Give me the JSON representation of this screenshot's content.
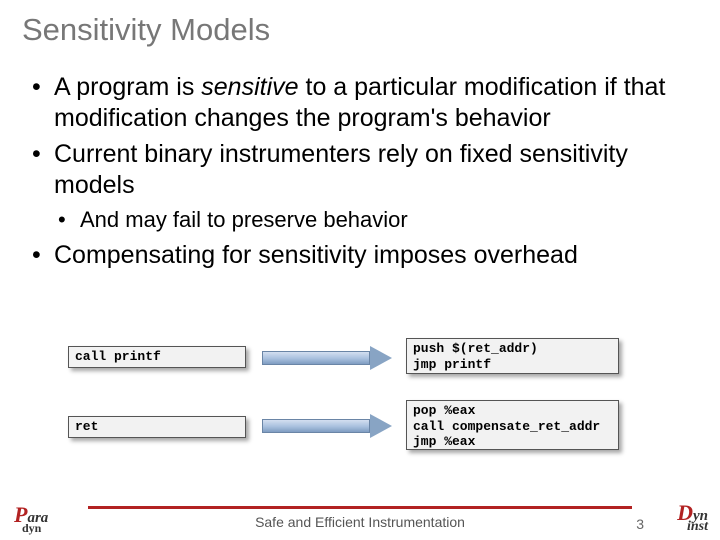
{
  "title": "Sensitivity Models",
  "bullets": {
    "b1_pre": "A program is ",
    "b1_em": "sensitive",
    "b1_post": " to a particular modification if that modification changes the program's behavior",
    "b2": "Current binary instrumenters rely on fixed sensitivity models",
    "b2_1": "And may fail to preserve behavior",
    "b3": "Compensating for sensitivity imposes overhead"
  },
  "code": {
    "call": "call printf",
    "ret": "ret",
    "push": "push $(ret_addr)\njmp printf",
    "pop": "pop %eax\ncall compensate_ret_addr\njmp %eax"
  },
  "footer": {
    "caption": "Safe and Efficient Instrumentation",
    "page": "3"
  },
  "logos": {
    "left_big": "P",
    "left_mid": "ara",
    "left_sub": "dyn",
    "right_big": "D",
    "right_mid": "yn",
    "right_sub": "inst"
  },
  "styles": {
    "accent_color": "#b22222",
    "title_color": "#777777",
    "box_bg": "#f2f2f2",
    "arrow_fill": "#88a4c4"
  }
}
